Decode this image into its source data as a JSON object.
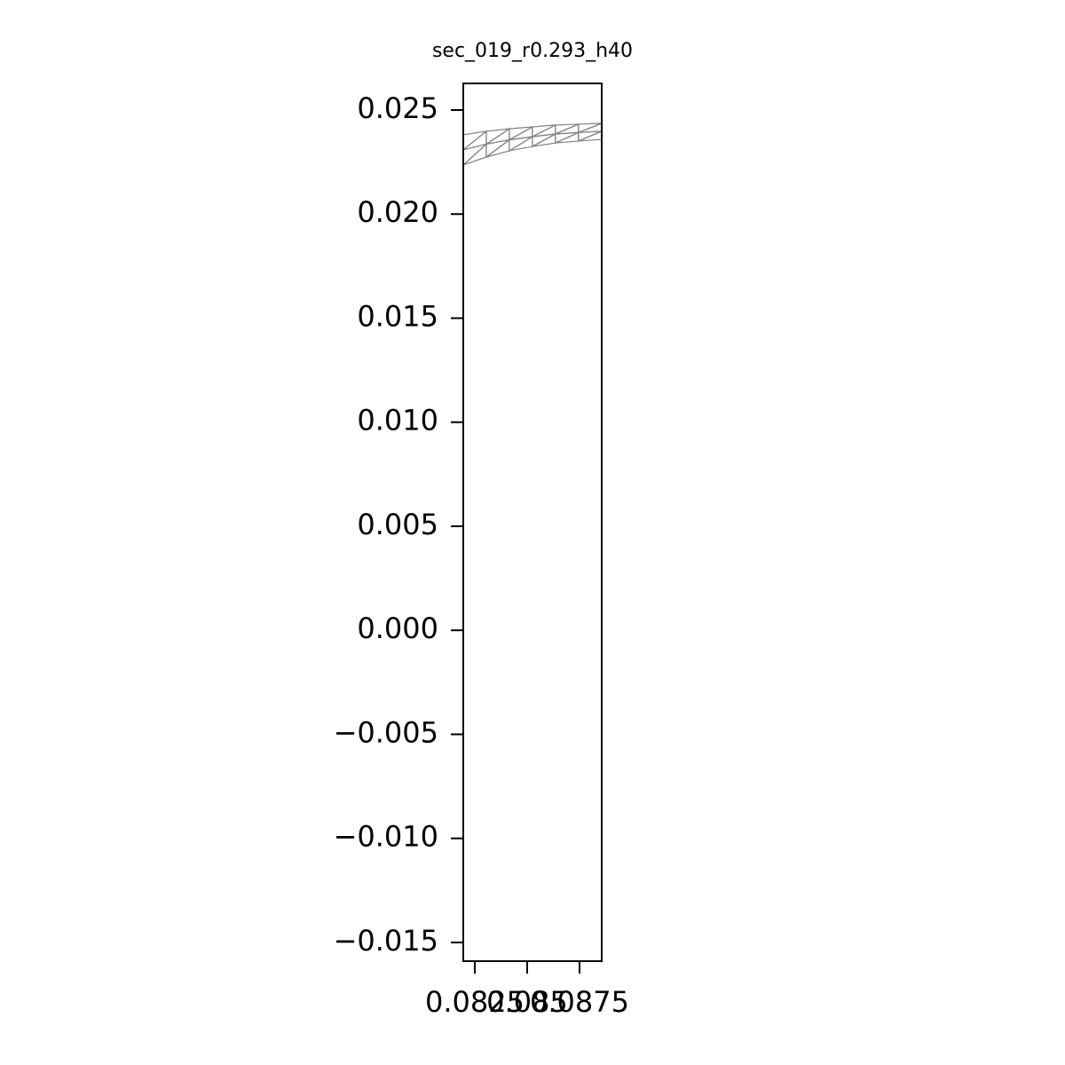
{
  "chart_data": {
    "type": "triplot",
    "title": "sec_019_r0.293_h40",
    "color": "#808080",
    "x": [
      0.08195,
      0.08305,
      0.08415,
      0.08525,
      0.08635,
      0.08745,
      0.08855,
      0.08195,
      0.08305,
      0.08415,
      0.08525,
      0.08635,
      0.08745,
      0.08855,
      0.08195,
      0.08305,
      0.08415,
      0.08525,
      0.08635,
      0.08745,
      0.08855
    ],
    "y": [
      0.02236,
      0.02274,
      0.02304,
      0.02325,
      0.02342,
      0.02351,
      0.02359,
      0.02309,
      0.02336,
      0.02357,
      0.02372,
      0.02385,
      0.02392,
      0.02398,
      0.02381,
      0.02398,
      0.0241,
      0.02419,
      0.02428,
      0.02432,
      0.02436
    ],
    "triangles": [
      [
        0,
        1,
        8
      ],
      [
        0,
        8,
        7
      ],
      [
        1,
        2,
        9
      ],
      [
        1,
        9,
        8
      ],
      [
        2,
        3,
        10
      ],
      [
        2,
        10,
        9
      ],
      [
        3,
        4,
        11
      ],
      [
        3,
        11,
        10
      ],
      [
        4,
        5,
        12
      ],
      [
        4,
        12,
        11
      ],
      [
        5,
        6,
        13
      ],
      [
        5,
        13,
        12
      ],
      [
        7,
        8,
        15
      ],
      [
        7,
        15,
        14
      ],
      [
        8,
        9,
        16
      ],
      [
        8,
        16,
        15
      ],
      [
        9,
        10,
        17
      ],
      [
        9,
        17,
        16
      ],
      [
        10,
        11,
        18
      ],
      [
        10,
        18,
        17
      ],
      [
        11,
        12,
        19
      ],
      [
        11,
        19,
        18
      ],
      [
        12,
        13,
        20
      ],
      [
        12,
        20,
        19
      ]
    ],
    "xlim": [
      0.08195,
      0.08856
    ],
    "ylim": [
      -0.0159,
      0.02628
    ],
    "xticks": [
      0.0825,
      0.085,
      0.0875
    ],
    "yticks": [
      {
        "value": -0.015,
        "label": "−0.015"
      },
      {
        "value": -0.01,
        "label": "−0.010"
      },
      {
        "value": -0.005,
        "label": "−0.005"
      },
      {
        "value": 0,
        "label": "0.000"
      },
      {
        "value": 0.005,
        "label": "0.005"
      },
      {
        "value": 0.01,
        "label": "0.010"
      },
      {
        "value": 0.015,
        "label": "0.015"
      },
      {
        "value": 0.02,
        "label": "0.020"
      },
      {
        "value": 0.025,
        "label": "0.025"
      }
    ]
  }
}
